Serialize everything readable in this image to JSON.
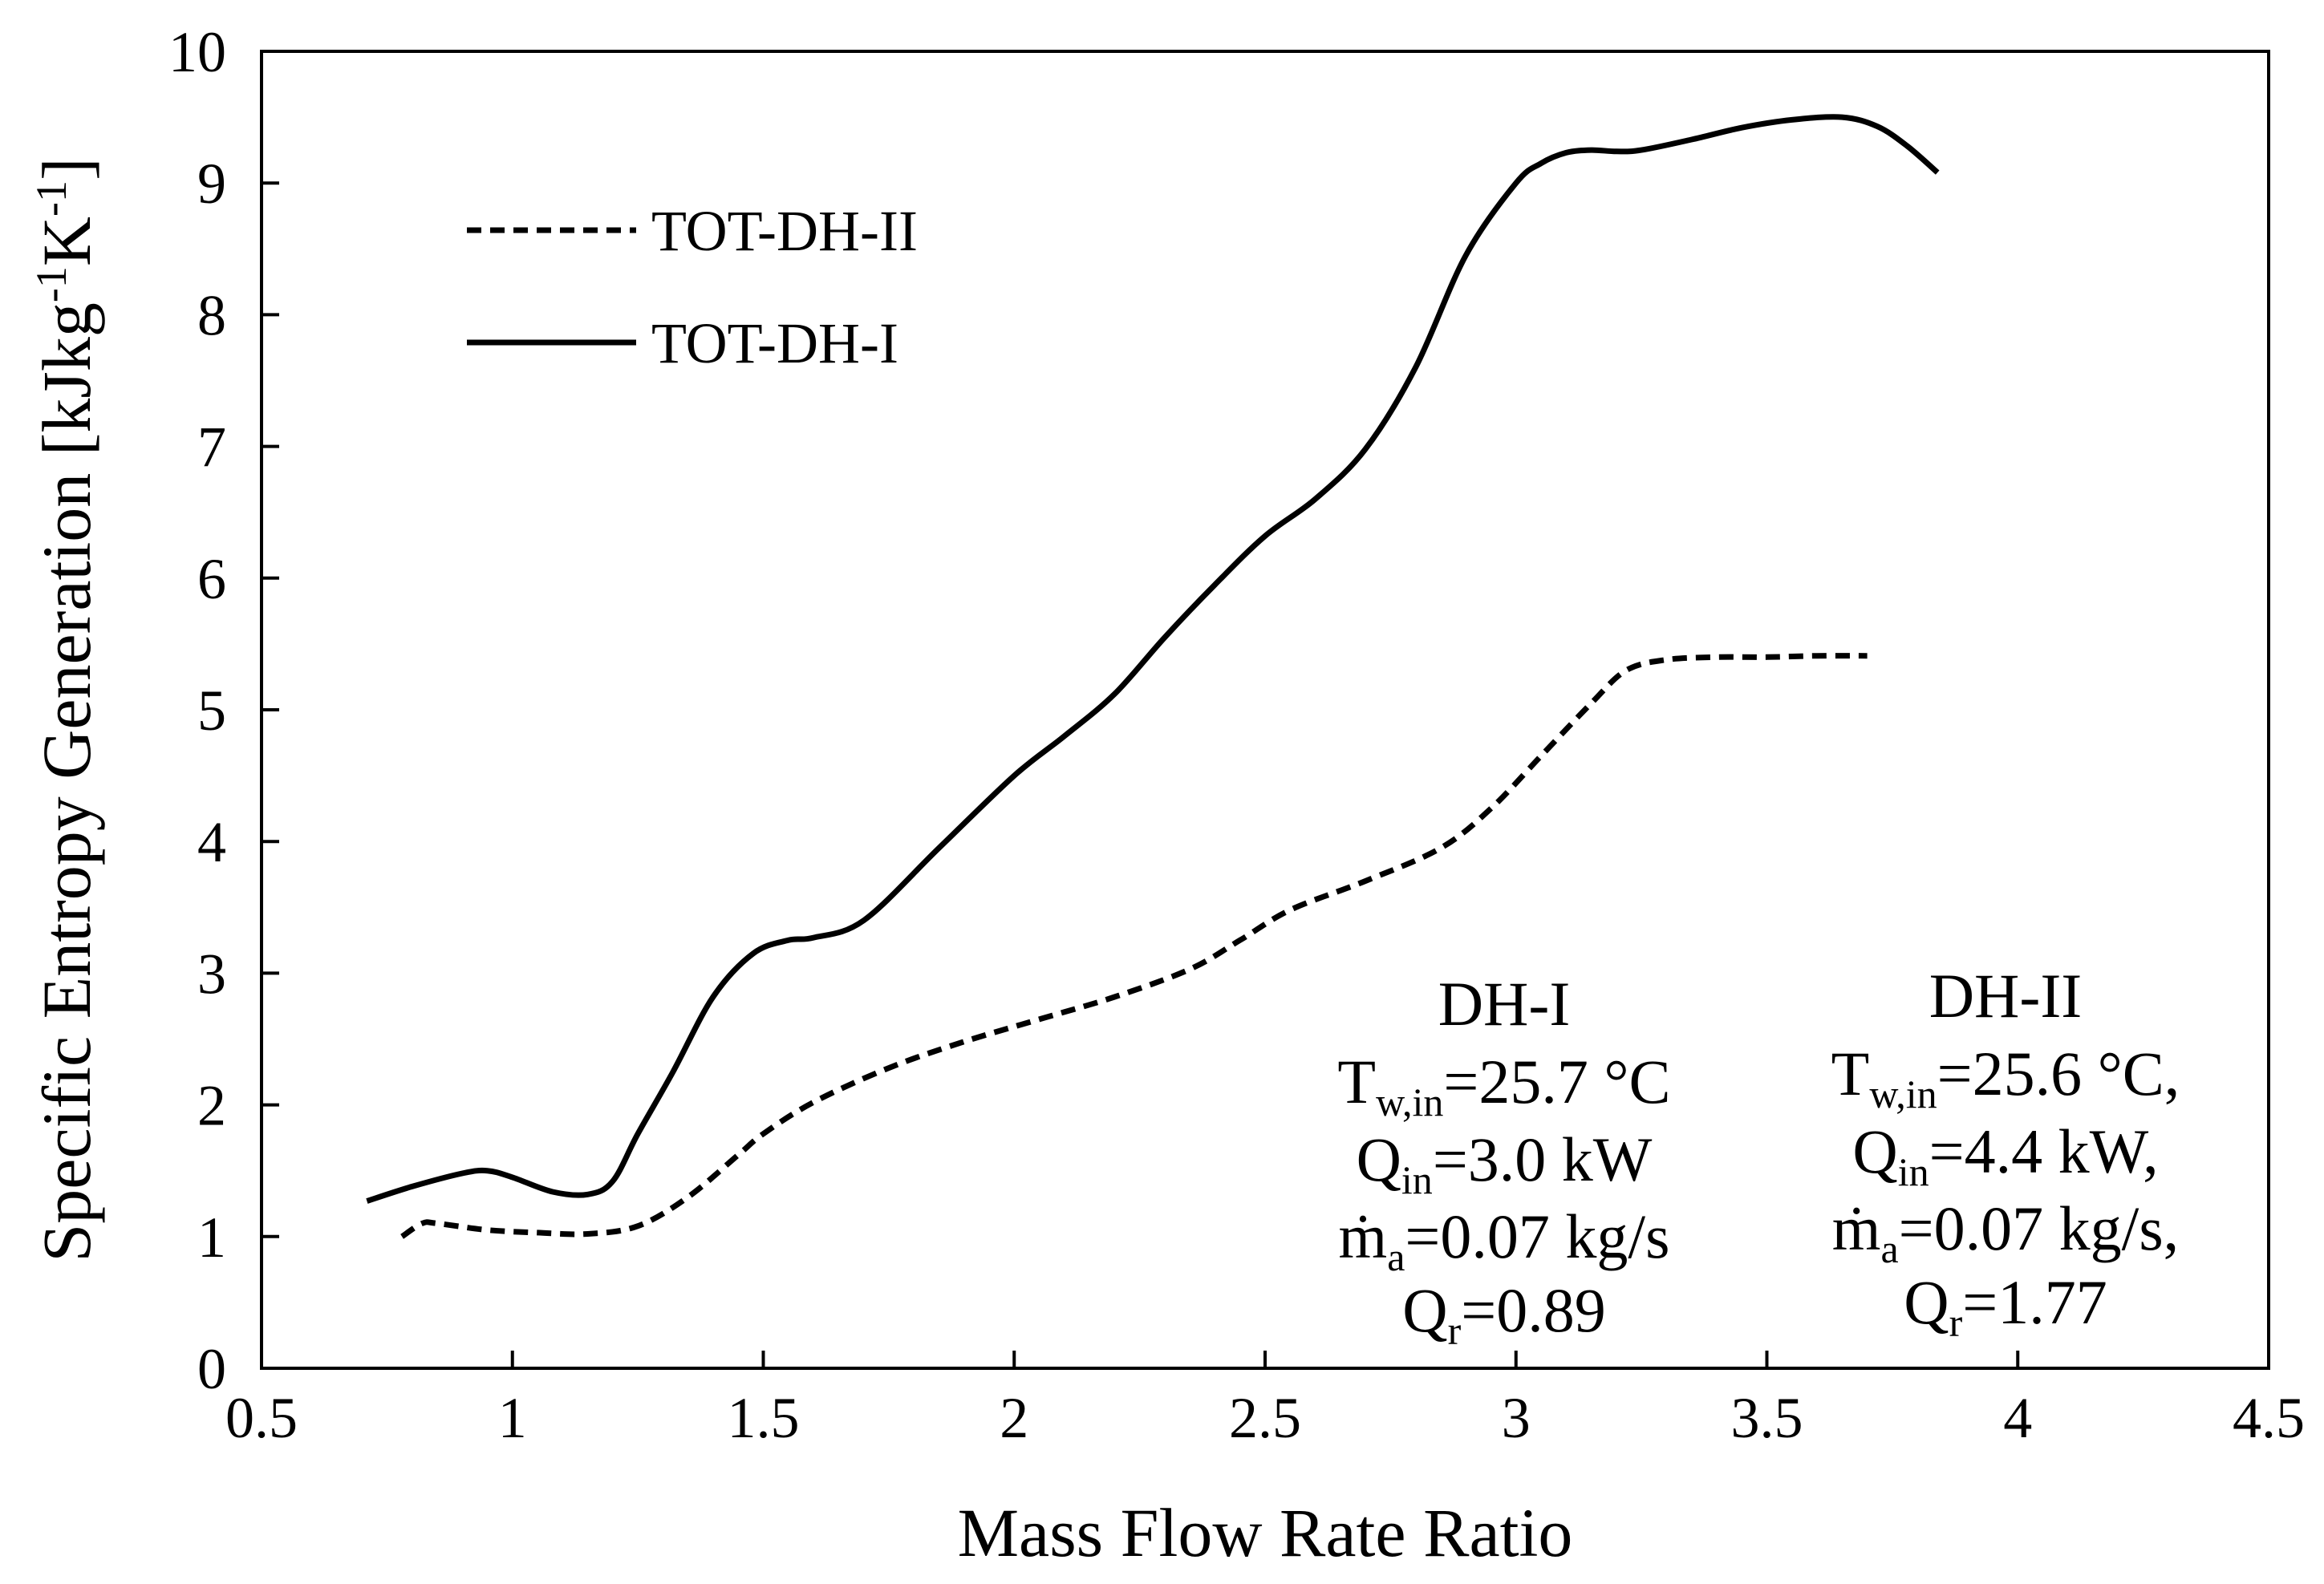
{
  "chart_data": {
    "type": "line",
    "xlabel": "Mass Flow Rate Ratio",
    "ylabel": {
      "main": "Specific Entropy Generation [kJkg",
      "sup1": "-1",
      "mid": "K",
      "sup2": "-1",
      "end": "]"
    },
    "xlim": [
      0.5,
      4.5
    ],
    "ylim": [
      0,
      10
    ],
    "xticks": [
      "0.5",
      "1",
      "1.5",
      "2",
      "2.5",
      "3",
      "3.5",
      "4",
      "4.5"
    ],
    "yticks": [
      "0",
      "1",
      "2",
      "3",
      "4",
      "5",
      "6",
      "7",
      "8",
      "9",
      "10"
    ],
    "grid": false,
    "legend_position": "top-left",
    "series": [
      {
        "name": "TOT-DH-II",
        "style": "dashed",
        "x": [
          0.78,
          0.82,
          0.85,
          0.95,
          1.05,
          1.15,
          1.25,
          1.35,
          1.45,
          1.5,
          1.6,
          1.75,
          1.9,
          2.05,
          2.2,
          2.35,
          2.45,
          2.55,
          2.7,
          2.85,
          2.95,
          3.05,
          3.15,
          3.22,
          3.3,
          3.4,
          3.5,
          3.6,
          3.7
        ],
        "values": [
          1.0,
          1.1,
          1.1,
          1.05,
          1.03,
          1.02,
          1.08,
          1.3,
          1.62,
          1.78,
          2.02,
          2.28,
          2.48,
          2.65,
          2.82,
          3.03,
          3.25,
          3.48,
          3.7,
          3.95,
          4.25,
          4.65,
          5.05,
          5.3,
          5.38,
          5.4,
          5.4,
          5.41,
          5.41
        ]
      },
      {
        "name": "TOT-DH-I",
        "style": "solid",
        "x": [
          0.71,
          0.8,
          0.9,
          0.95,
          1.0,
          1.08,
          1.15,
          1.2,
          1.25,
          1.32,
          1.4,
          1.48,
          1.55,
          1.6,
          1.7,
          1.85,
          2.0,
          2.1,
          2.2,
          2.3,
          2.4,
          2.5,
          2.6,
          2.7,
          2.8,
          2.9,
          3.0,
          3.05,
          3.1,
          3.15,
          3.2,
          3.25,
          3.35,
          3.45,
          3.55,
          3.65,
          3.72,
          3.78,
          3.84
        ],
        "values": [
          1.27,
          1.38,
          1.48,
          1.5,
          1.45,
          1.34,
          1.32,
          1.42,
          1.78,
          2.25,
          2.82,
          3.15,
          3.25,
          3.27,
          3.4,
          3.95,
          4.5,
          4.8,
          5.12,
          5.55,
          5.95,
          6.32,
          6.6,
          6.98,
          7.6,
          8.45,
          9.0,
          9.15,
          9.23,
          9.25,
          9.24,
          9.25,
          9.33,
          9.42,
          9.48,
          9.5,
          9.43,
          9.28,
          9.08
        ]
      }
    ],
    "annotations": [
      {
        "title": "DH-I",
        "line1": {
          "a": "T",
          "sub": "w,in",
          "b": "=25.7  °C"
        },
        "line2": {
          "a": "Q",
          "sub": "in",
          "b": "=3.0  kW"
        },
        "line3": {
          "a": "ṁ",
          "sub": "a",
          "b": "=0.07 kg/s"
        },
        "line4": {
          "a": "Q",
          "sub": "r",
          "b": "=0.89"
        }
      },
      {
        "title": "DH-II",
        "line1": {
          "a": "T",
          "sub": "w,in",
          "b": "=25.6 °C,"
        },
        "line2": {
          "a": "Q",
          "sub": "in",
          "b": "=4.4 kW,"
        },
        "line3": {
          "a": "ṁ",
          "sub": "a",
          "b": "=0.07 kg/s,"
        },
        "line4": {
          "a": "Q",
          "sub": "r",
          "b": "=1.77"
        }
      }
    ]
  }
}
